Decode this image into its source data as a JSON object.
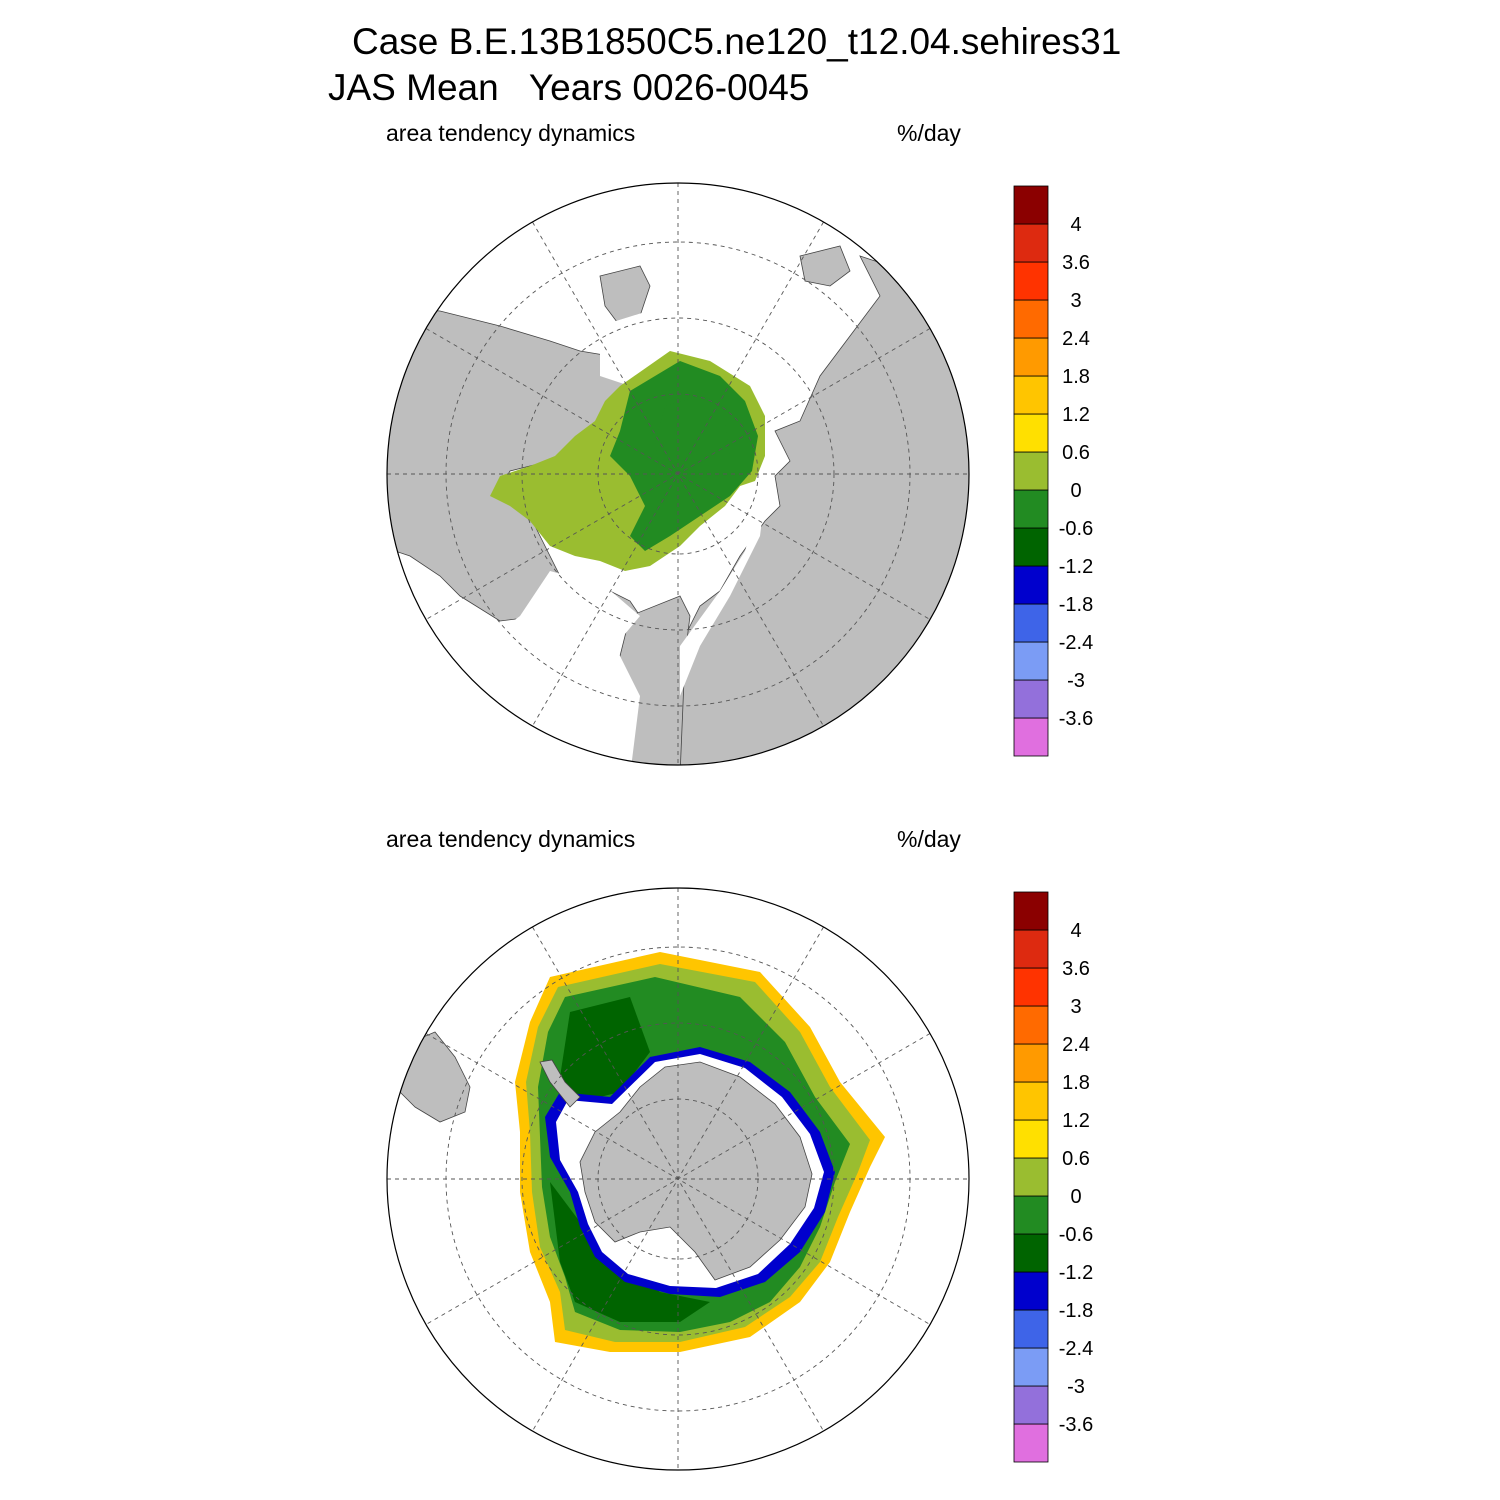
{
  "figure": {
    "title_line1": "Case B.E.13B1850C5.ne120_t12.04.sehires31",
    "title_line2": "JAS Mean   Years 0026-0045"
  },
  "panels": [
    {
      "id": "north",
      "hemisphere": "Arctic",
      "left_title": "area tendency dynamics",
      "right_title": "%/day"
    },
    {
      "id": "south",
      "hemisphere": "Antarctic",
      "left_title": "area tendency dynamics",
      "right_title": "%/day"
    }
  ],
  "colorbar": {
    "colors": [
      "#e06fdf",
      "#9370db",
      "#7b9cf5",
      "#3e64e8",
      "#0000cd",
      "#006400",
      "#228b22",
      "#9abd30",
      "#ffe000",
      "#ffc500",
      "#ff9a00",
      "#ff6a00",
      "#ff3300",
      "#dd2a10",
      "#8b0000"
    ],
    "labels": [
      "-3.6",
      "-3",
      "-2.4",
      "-1.8",
      "-1.2",
      "-0.6",
      "0",
      "0.6",
      "1.2",
      "1.8",
      "2.4",
      "3",
      "3.6",
      "4"
    ]
  },
  "colors": {
    "land": "#bebebe",
    "ocean": "#ffffff",
    "grid": "#555555"
  }
}
